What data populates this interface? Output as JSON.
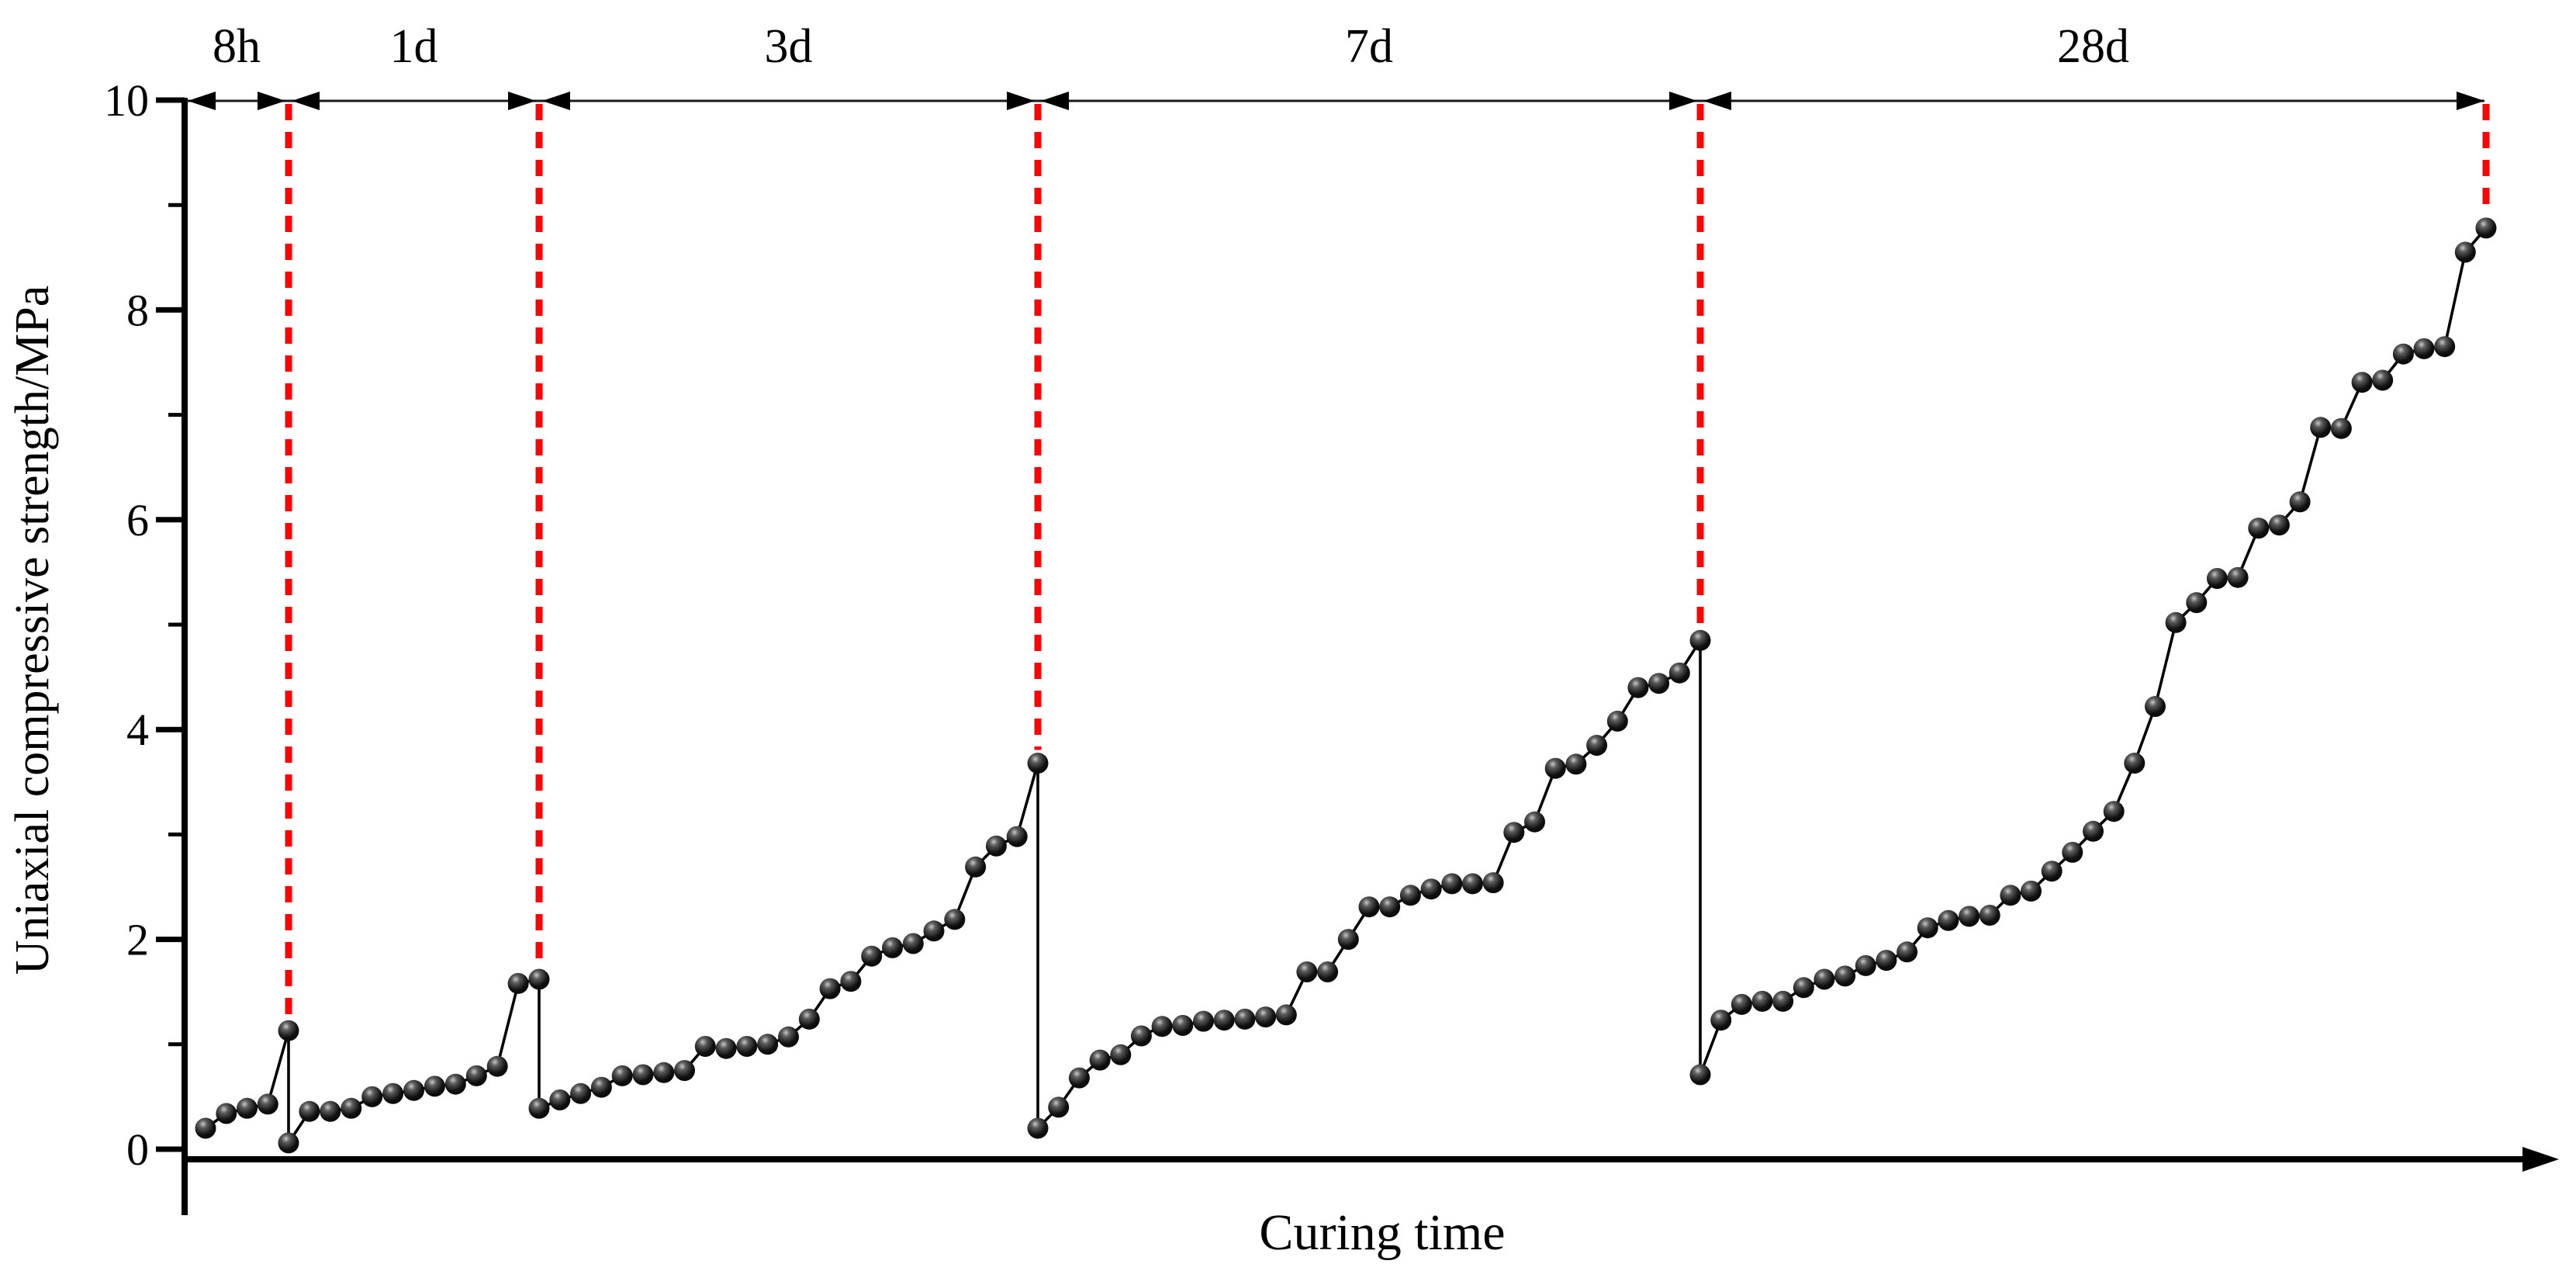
{
  "chart_data": {
    "type": "line",
    "title": "",
    "xlabel": "Curing time",
    "ylabel": "Uniaxial compressive strength/MPa",
    "ylim": [
      0,
      10
    ],
    "y_major_ticks": [
      0,
      2,
      4,
      6,
      8,
      10
    ],
    "y_minor_ticks": [
      1,
      3,
      5,
      7,
      9
    ],
    "grid": false,
    "legend": "none",
    "marker_style": "black-sphere",
    "colors": {
      "series": "#000000",
      "stage_divider": "#fa0505",
      "axis": "#000000"
    },
    "stages": [
      {
        "label": "8h",
        "values": [
          0.2,
          0.34,
          0.39,
          0.43,
          1.13
        ]
      },
      {
        "label": "1d",
        "values": [
          0.06,
          0.36,
          0.36,
          0.39,
          0.5,
          0.53,
          0.56,
          0.6,
          0.62,
          0.7,
          0.79,
          1.58,
          1.62
        ]
      },
      {
        "label": "3d",
        "values": [
          0.39,
          0.47,
          0.53,
          0.59,
          0.7,
          0.71,
          0.73,
          0.75,
          0.98,
          0.96,
          0.98,
          1.0,
          1.07,
          1.24,
          1.53,
          1.6,
          1.84,
          1.92,
          1.96,
          2.08,
          2.19,
          2.69,
          2.89,
          2.98,
          3.68
        ]
      },
      {
        "label": "7d",
        "values": [
          0.2,
          0.4,
          0.68,
          0.85,
          0.9,
          1.08,
          1.17,
          1.18,
          1.22,
          1.23,
          1.24,
          1.26,
          1.28,
          1.69,
          1.69,
          2.0,
          2.31,
          2.31,
          2.42,
          2.48,
          2.53,
          2.53,
          2.54,
          3.02,
          3.12,
          3.63,
          3.67,
          3.85,
          4.08,
          4.4,
          4.44,
          4.54,
          4.85
        ]
      },
      {
        "label": "28d",
        "values": [
          0.71,
          1.23,
          1.38,
          1.41,
          1.41,
          1.54,
          1.62,
          1.65,
          1.75,
          1.8,
          1.88,
          2.11,
          2.18,
          2.22,
          2.23,
          2.42,
          2.46,
          2.65,
          2.83,
          3.03,
          3.22,
          3.68,
          4.22,
          5.02,
          5.21,
          5.44,
          5.45,
          5.92,
          5.95,
          6.17,
          6.88,
          6.87,
          7.31,
          7.33,
          7.58,
          7.63,
          7.65,
          8.55,
          8.78
        ]
      }
    ]
  }
}
